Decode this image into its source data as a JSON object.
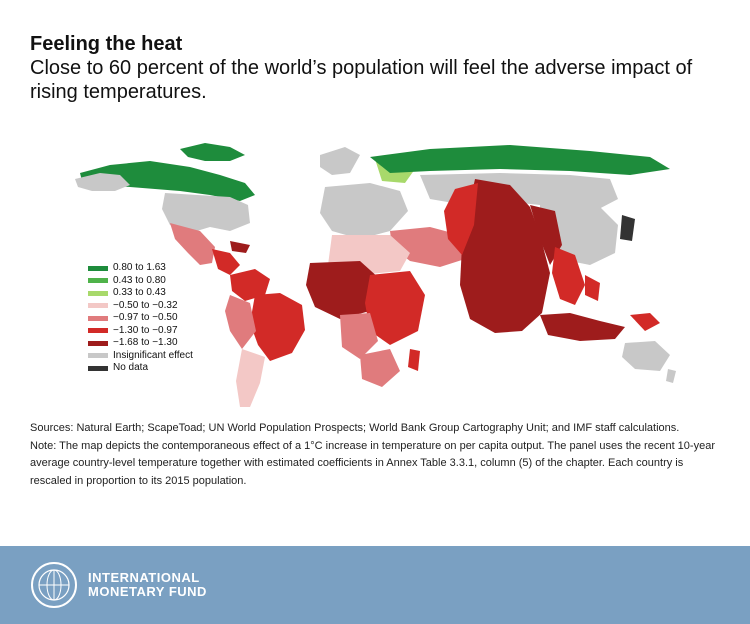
{
  "header": {
    "title": "Feeling the heat",
    "subtitle": "Close to 60 percent of the world’s population will feel the adverse impact of rising temperatures."
  },
  "legend": {
    "items": [
      {
        "label": "0.80 to 1.63",
        "color": "#1e8c3c"
      },
      {
        "label": "0.43 to 0.80",
        "color": "#4fb34a"
      },
      {
        "label": "0.33 to 0.43",
        "color": "#a8d96b"
      },
      {
        "label": "−0.50 to −0.32",
        "color": "#f3c8c6"
      },
      {
        "label": "−0.97 to −0.50",
        "color": "#e07b7d"
      },
      {
        "label": "−1.30 to −0.97",
        "color": "#d22a27"
      },
      {
        "label": "−1.68 to −1.30",
        "color": "#9e1c1c"
      },
      {
        "label": "Insignificant effect",
        "color": "#c8c8c8"
      },
      {
        "label": "No data",
        "color": "#333333"
      }
    ]
  },
  "notes": {
    "sources": "Sources: Natural Earth; ScapeToad; UN World Population Prospects; World Bank Group Cartography Unit; and IMF staff calculations.",
    "note": "Note: The map depicts the contemporaneous effect of a 1°C increase in temperature on per capita output. The panel uses the recent 10-year average country-level temperature together with estimated coefficients in Annex Table 3.3.1, column (5) of the chapter. Each country is rescaled in proportion to its 2015 population."
  },
  "footer": {
    "org_line1": "INTERNATIONAL",
    "org_line2": "MONETARY FUND",
    "background": "#7aa0c2"
  }
}
